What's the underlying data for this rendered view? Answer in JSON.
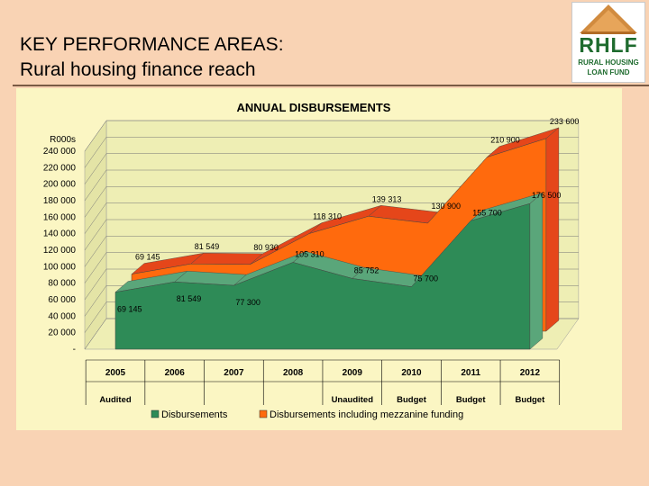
{
  "slide": {
    "title": "KEY PERFORMANCE AREAS:",
    "subtitle": "Rural housing finance reach"
  },
  "logo": {
    "main": "RHLF",
    "line1": "RURAL HOUSING",
    "line2": "LOAN FUND"
  },
  "chart_data": {
    "type": "area",
    "title": "ANNUAL DISBURSEMENTS",
    "ylabel": "R000s",
    "ylim": [
      0,
      240000
    ],
    "grid": true,
    "legend": "bottom",
    "categories": [
      "2005",
      "2006",
      "2007",
      "2008",
      "2009",
      "2010",
      "2011",
      "2012"
    ],
    "status_labels": [
      "Audited",
      "",
      "",
      "",
      "Unaudited",
      "Budget",
      "Budget",
      "Budget"
    ],
    "y_ticks": [
      "-",
      "20 000",
      "40 000",
      "60 000",
      "80 000",
      "100 000",
      "120 000",
      "140 000",
      "160 000",
      "180 000",
      "200 000",
      "220 000",
      "240 000"
    ],
    "series": [
      {
        "name": "Disbursements",
        "color": "#2e8b57",
        "values": [
          69145,
          81549,
          77300,
          105310,
          85752,
          75700,
          155700,
          176500
        ],
        "labels": [
          "69 145",
          "81 549",
          "77 300",
          "105 310",
          "85 752",
          "75 700",
          "155 700",
          "176 500"
        ]
      },
      {
        "name": "Disbursements including mezzanine funding",
        "color": "#ff6a0d",
        "values": [
          69145,
          81549,
          80930,
          118310,
          139313,
          130900,
          210900,
          233600
        ],
        "labels": [
          "69 145",
          "81 549",
          "80 930",
          "118 310",
          "139 313",
          "130 900",
          "210 900",
          "233 600"
        ]
      }
    ],
    "colors": {
      "panel": "#fbf6c3",
      "wall": "#eeeeb4",
      "floor": "#eeeeb4",
      "green_top": "#5aa67a",
      "orange_top": "#e5461a"
    }
  }
}
